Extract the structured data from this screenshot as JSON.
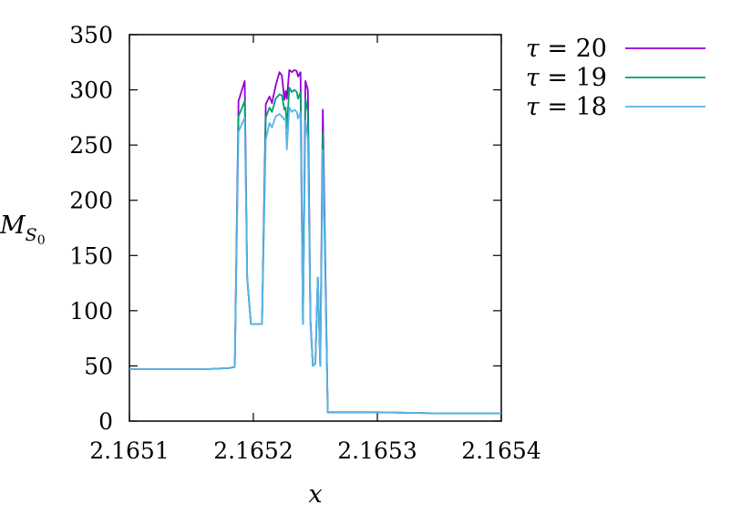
{
  "chart_data": {
    "type": "line",
    "xlabel": "x",
    "ylabel": "M",
    "ylabel_subscript": "S",
    "ylabel_subsubscript": "0",
    "xlim": [
      2.1651,
      2.1654
    ],
    "ylim": [
      0,
      350
    ],
    "xticks": [
      "2.1651",
      "2.1652",
      "2.1653",
      "2.1654"
    ],
    "yticks": [
      "0",
      "50",
      "100",
      "150",
      "200",
      "250",
      "300",
      "350"
    ],
    "legend_position": "outside-right-top",
    "series": [
      {
        "name": "τ = 20",
        "legend_symbol": "τ",
        "legend_value": "= 20",
        "color": "#9400d3",
        "points": [
          [
            2.1651,
            47
          ],
          [
            2.16516,
            47
          ],
          [
            2.16518,
            48
          ],
          [
            2.165185,
            49
          ],
          [
            2.165188,
            290
          ],
          [
            2.165193,
            308
          ],
          [
            2.165195,
            130
          ],
          [
            2.165198,
            88
          ],
          [
            2.165207,
            88
          ],
          [
            2.16521,
            287
          ],
          [
            2.165213,
            294
          ],
          [
            2.165215,
            288
          ],
          [
            2.165218,
            304
          ],
          [
            2.165221,
            316
          ],
          [
            2.165223,
            313
          ],
          [
            2.165225,
            291
          ],
          [
            2.165226,
            299
          ],
          [
            2.165227,
            292
          ],
          [
            2.165229,
            318
          ],
          [
            2.165231,
            316
          ],
          [
            2.165233,
            318
          ],
          [
            2.165235,
            317
          ],
          [
            2.165236,
            312
          ],
          [
            2.165238,
            316
          ],
          [
            2.16524,
            88
          ],
          [
            2.165242,
            308
          ],
          [
            2.165244,
            300
          ],
          [
            2.165246,
            92
          ],
          [
            2.165248,
            50
          ],
          [
            2.16525,
            52
          ],
          [
            2.165252,
            130
          ],
          [
            2.165254,
            50
          ],
          [
            2.165256,
            282
          ],
          [
            2.16526,
            8
          ],
          [
            2.1653,
            8
          ],
          [
            2.16535,
            7
          ],
          [
            2.1654,
            7
          ]
        ]
      },
      {
        "name": "τ = 19",
        "legend_symbol": "τ",
        "legend_value": "= 19",
        "color": "#009e73",
        "points": [
          [
            2.1651,
            47
          ],
          [
            2.16516,
            47
          ],
          [
            2.16518,
            48
          ],
          [
            2.165185,
            49
          ],
          [
            2.165188,
            276
          ],
          [
            2.165193,
            290
          ],
          [
            2.165195,
            130
          ],
          [
            2.165198,
            88
          ],
          [
            2.165207,
            88
          ],
          [
            2.16521,
            275
          ],
          [
            2.165213,
            284
          ],
          [
            2.165215,
            280
          ],
          [
            2.165218,
            292
          ],
          [
            2.165221,
            296
          ],
          [
            2.165223,
            295
          ],
          [
            2.165225,
            282
          ],
          [
            2.165226,
            284
          ],
          [
            2.165227,
            265
          ],
          [
            2.165229,
            302
          ],
          [
            2.165231,
            298
          ],
          [
            2.165233,
            300
          ],
          [
            2.165235,
            298
          ],
          [
            2.165236,
            292
          ],
          [
            2.165238,
            298
          ],
          [
            2.16524,
            88
          ],
          [
            2.165242,
            292
          ],
          [
            2.165244,
            280
          ],
          [
            2.165246,
            90
          ],
          [
            2.165248,
            50
          ],
          [
            2.16525,
            52
          ],
          [
            2.165252,
            130
          ],
          [
            2.165254,
            50
          ],
          [
            2.165256,
            262
          ],
          [
            2.16526,
            8
          ],
          [
            2.1653,
            8
          ],
          [
            2.16535,
            7
          ],
          [
            2.1654,
            7
          ]
        ]
      },
      {
        "name": "τ = 18",
        "legend_symbol": "τ",
        "legend_value": "= 18",
        "color": "#56b4e9",
        "points": [
          [
            2.1651,
            47
          ],
          [
            2.16516,
            47
          ],
          [
            2.16518,
            48
          ],
          [
            2.165185,
            49
          ],
          [
            2.165188,
            262
          ],
          [
            2.165193,
            275
          ],
          [
            2.165195,
            130
          ],
          [
            2.165198,
            88
          ],
          [
            2.165207,
            88
          ],
          [
            2.16521,
            255
          ],
          [
            2.165213,
            270
          ],
          [
            2.165215,
            266
          ],
          [
            2.165218,
            276
          ],
          [
            2.165221,
            278
          ],
          [
            2.165223,
            276
          ],
          [
            2.165225,
            273
          ],
          [
            2.165226,
            274
          ],
          [
            2.165227,
            246
          ],
          [
            2.165229,
            284
          ],
          [
            2.165231,
            280
          ],
          [
            2.165233,
            282
          ],
          [
            2.165235,
            280
          ],
          [
            2.165236,
            274
          ],
          [
            2.165238,
            280
          ],
          [
            2.16524,
            88
          ],
          [
            2.165242,
            272
          ],
          [
            2.165244,
            256
          ],
          [
            2.165246,
            88
          ],
          [
            2.165248,
            50
          ],
          [
            2.16525,
            52
          ],
          [
            2.165252,
            130
          ],
          [
            2.165254,
            50
          ],
          [
            2.165256,
            246
          ],
          [
            2.16526,
            8
          ],
          [
            2.1653,
            8
          ],
          [
            2.16535,
            7
          ],
          [
            2.1654,
            7
          ]
        ]
      }
    ]
  }
}
